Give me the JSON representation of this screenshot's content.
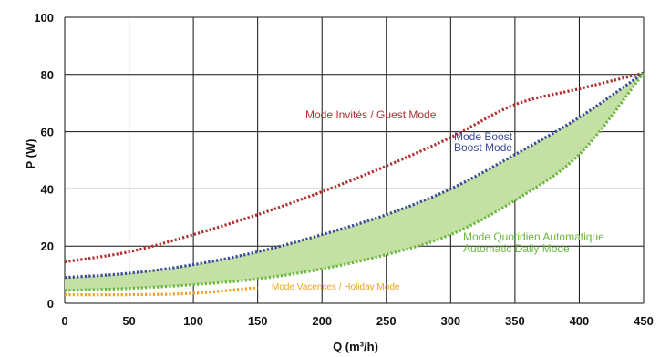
{
  "chart_data": {
    "type": "line",
    "title": "",
    "xlabel": "Q (m³/h)",
    "ylabel": "P (W)",
    "xlim": [
      0,
      450
    ],
    "ylim": [
      0,
      100
    ],
    "x_ticks": [
      0,
      50,
      100,
      150,
      200,
      250,
      300,
      350,
      400,
      450
    ],
    "y_ticks": [
      0,
      20,
      40,
      60,
      80,
      100
    ],
    "grid": true,
    "colors": {
      "guest": "#b03030",
      "boost": "#3a4a9a",
      "daily": "#6ab83a",
      "holiday": "#f0a020",
      "band_fill": "#c5e0a5",
      "grid": "#111111"
    },
    "series": [
      {
        "key": "guest",
        "points": [
          [
            0,
            14.5
          ],
          [
            50,
            18
          ],
          [
            100,
            24
          ],
          [
            150,
            31
          ],
          [
            200,
            39
          ],
          [
            250,
            48
          ],
          [
            300,
            58
          ],
          [
            350,
            69.5
          ],
          [
            400,
            75
          ],
          [
            450,
            80.5
          ]
        ]
      },
      {
        "key": "boost",
        "points": [
          [
            0,
            9
          ],
          [
            50,
            10.5
          ],
          [
            100,
            13.5
          ],
          [
            150,
            18
          ],
          [
            200,
            24
          ],
          [
            250,
            31
          ],
          [
            300,
            40
          ],
          [
            350,
            52
          ],
          [
            400,
            65
          ],
          [
            450,
            80.5
          ]
        ]
      },
      {
        "key": "daily",
        "points": [
          [
            0,
            4.5
          ],
          [
            50,
            5.2
          ],
          [
            100,
            6.5
          ],
          [
            150,
            8.5
          ],
          [
            200,
            12
          ],
          [
            250,
            17
          ],
          [
            300,
            24
          ],
          [
            350,
            36
          ],
          [
            400,
            52
          ],
          [
            450,
            80.5
          ]
        ]
      },
      {
        "key": "holiday",
        "points": [
          [
            0,
            3
          ],
          [
            50,
            3
          ],
          [
            100,
            3.5
          ],
          [
            150,
            5.5
          ]
        ]
      }
    ],
    "annotations": {
      "guest": "Mode Invités / Guest Mode",
      "boost_line1": "Mode Boost",
      "boost_line2": "Boost Mode",
      "daily_line1": "Mode Quotidien Automatique",
      "daily_line2": "Automatic Daily Mode",
      "holiday": "Mode Vacences / Holiday Mode"
    }
  }
}
